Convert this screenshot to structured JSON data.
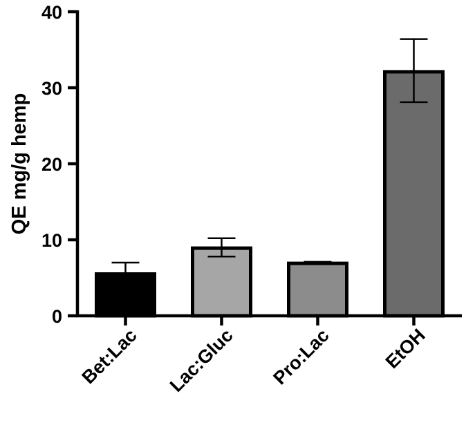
{
  "chart_data": {
    "type": "bar",
    "title": "",
    "xlabel": "",
    "ylabel": "QE mg/g hemp",
    "ylim": [
      0,
      40
    ],
    "yticks": [
      0,
      10,
      20,
      30,
      40
    ],
    "grid": false,
    "categories": [
      "Bet:Lac",
      "Lac:Gluc",
      "Pro:Lac",
      "EtOH"
    ],
    "values": [
      5.5,
      8.9,
      6.9,
      32.1
    ],
    "error_plus": [
      1.5,
      1.3,
      0.2,
      4.3
    ],
    "error_minus": [
      0,
      1.1,
      0,
      4.0
    ],
    "bar_colors": [
      "#000000",
      "#a6a6a6",
      "#8c8c8c",
      "#6b6b6b"
    ],
    "edge_color": "#000000"
  }
}
